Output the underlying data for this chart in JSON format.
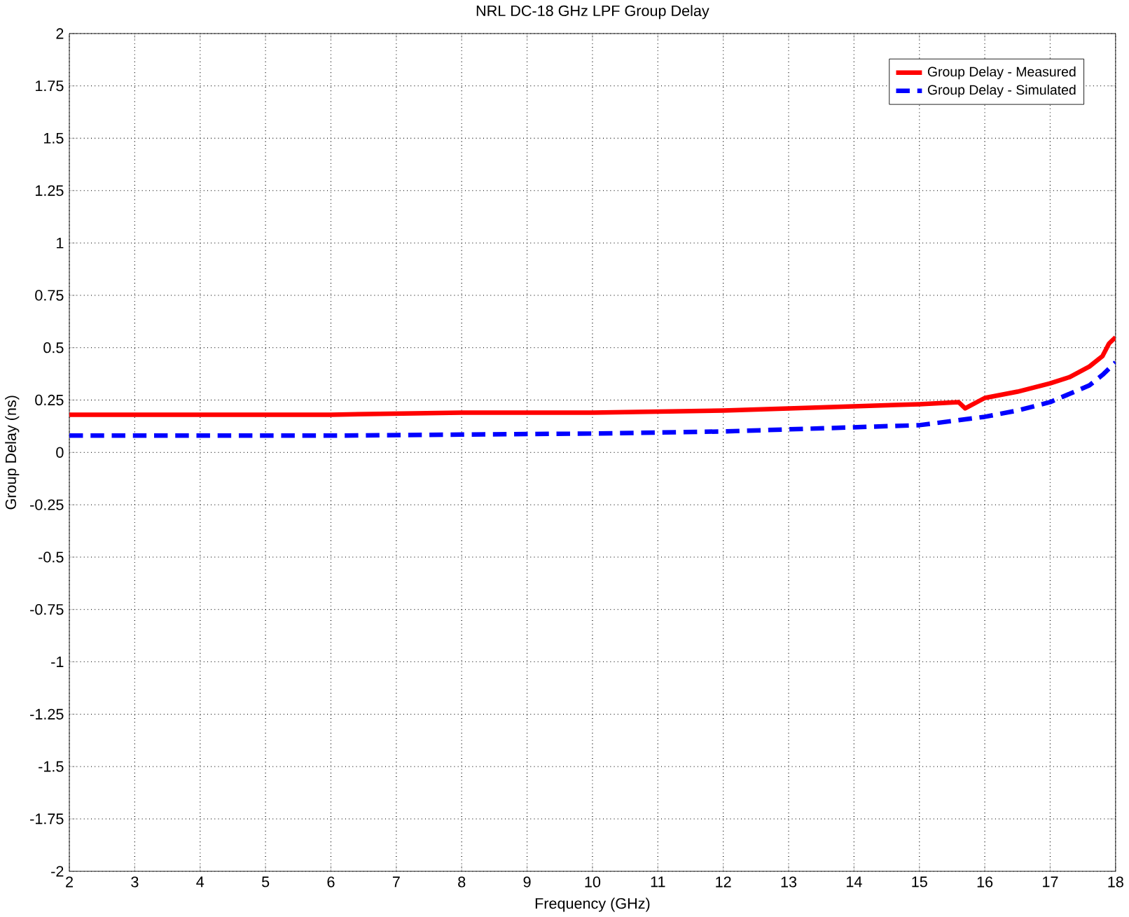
{
  "chart_data": {
    "type": "line",
    "title": "NRL DC-18 GHz LPF Group Delay",
    "xlabel": "Frequency (GHz)",
    "ylabel": "Group Delay (ns)",
    "xlim": [
      2,
      18
    ],
    "ylim": [
      -2,
      2
    ],
    "xticks": [
      2,
      3,
      4,
      5,
      6,
      7,
      8,
      9,
      10,
      11,
      12,
      13,
      14,
      15,
      16,
      17,
      18
    ],
    "yticks": [
      -2,
      -1.75,
      -1.5,
      -1.25,
      -1,
      -0.75,
      -0.5,
      -0.25,
      0,
      0.25,
      0.5,
      0.75,
      1,
      1.25,
      1.5,
      1.75,
      2
    ],
    "grid": true,
    "legend": "top right",
    "series": [
      {
        "name": "Group Delay - Measured",
        "color": "#ff0000",
        "line_style": "solid",
        "x": [
          2,
          4,
          6,
          8,
          10,
          12,
          13,
          14,
          15,
          15.6,
          15.7,
          16,
          16.5,
          17,
          17.3,
          17.6,
          17.8,
          17.9,
          18
        ],
        "values": [
          0.18,
          0.18,
          0.18,
          0.19,
          0.19,
          0.2,
          0.21,
          0.22,
          0.23,
          0.24,
          0.21,
          0.26,
          0.29,
          0.33,
          0.36,
          0.41,
          0.46,
          0.52,
          0.55
        ]
      },
      {
        "name": "Group Delay - Simulated",
        "color": "#0000ff",
        "line_style": "dashed",
        "x": [
          2,
          4,
          6,
          8,
          10,
          12,
          13,
          14,
          15,
          15.5,
          16,
          16.5,
          17,
          17.3,
          17.6,
          17.8,
          18
        ],
        "values": [
          0.08,
          0.08,
          0.08,
          0.085,
          0.09,
          0.1,
          0.11,
          0.12,
          0.13,
          0.15,
          0.17,
          0.2,
          0.24,
          0.28,
          0.32,
          0.37,
          0.43
        ]
      }
    ]
  }
}
